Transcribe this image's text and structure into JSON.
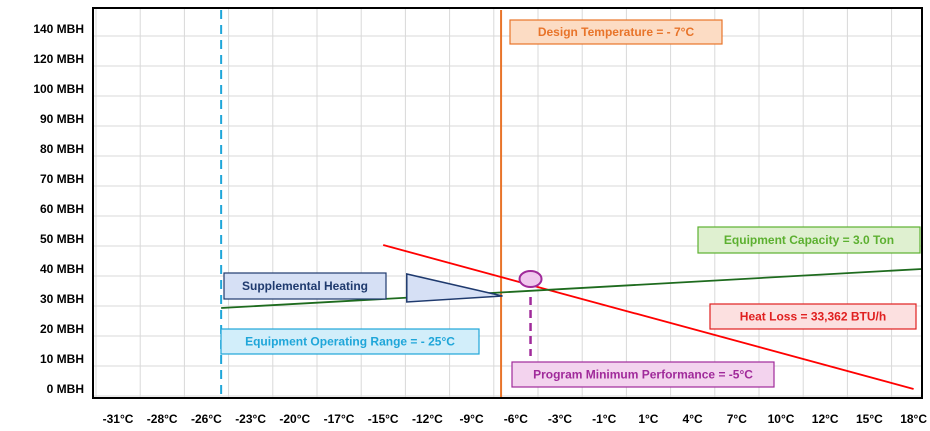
{
  "chart_data": {
    "type": "line",
    "y_ticks": [
      "0 MBH",
      "10 MBH",
      "20 MBH",
      "30 MBH",
      "40 MBH",
      "50 MBH",
      "60 MBH",
      "70 MBH",
      "80 MBH",
      "90 MBH",
      "100 MBH",
      "120 MBH",
      "140 MBH"
    ],
    "x_ticks": [
      "-31°C",
      "-28°C",
      "-26°C",
      "-23°C",
      "-20°C",
      "-17°C",
      "-15°C",
      "-12°C",
      "-9°C",
      "-6°C",
      "-3°C",
      "-1°C",
      "1°C",
      "4°C",
      "7°C",
      "10°C",
      "12°C",
      "15°C",
      "18°C"
    ],
    "grid": true,
    "series": [
      {
        "name": "Heat Loss = 33,362 BTU/h",
        "color": "#ff0000",
        "points": [
          [
            -15,
            48
          ],
          [
            18,
            0
          ]
        ]
      },
      {
        "name": "Equipment Capacity = 3.0 Ton",
        "color": "#1e6b1e",
        "points": [
          [
            -25,
            27
          ],
          [
            19,
            40
          ]
        ]
      }
    ],
    "vlines": [
      {
        "label": "Design Temperature = - 7°C",
        "x": -7,
        "color": "#e8742a",
        "style": "solid"
      },
      {
        "label": "Equipment Operating Range =  - 25°C",
        "x": -25,
        "color": "#1fa6d9",
        "style": "dashed"
      }
    ],
    "annotations": [
      {
        "label": "Supplemental  Heating",
        "fill": "#d6e0f5",
        "border": "#1f3a6e",
        "text": "#1f3a6e"
      },
      {
        "label": "Design Temperature = - 7°C",
        "fill": "#fcdcc4",
        "border": "#e8742a",
        "text": "#e8742a"
      },
      {
        "label": "Equipment Capacity = 3.0 Ton",
        "fill": "#dff0d0",
        "border": "#5cb030",
        "text": "#5cb030"
      },
      {
        "label": "Heat Loss = 33,362 BTU/h",
        "fill": "#fce0e0",
        "border": "#e02020",
        "text": "#e02020"
      },
      {
        "label": "Equipment Operating Range =  - 25°C",
        "fill": "#d2eefa",
        "border": "#1fa6d9",
        "text": "#1fa6d9"
      },
      {
        "label": "Program Minimum Performance = -5°C",
        "fill": "#f3d3ee",
        "border": "#a02a9a",
        "text": "#a02a9a"
      }
    ],
    "marker": {
      "x": -5,
      "y": 34,
      "color": "#a02a9a",
      "fill": "#f0c8ee"
    }
  }
}
